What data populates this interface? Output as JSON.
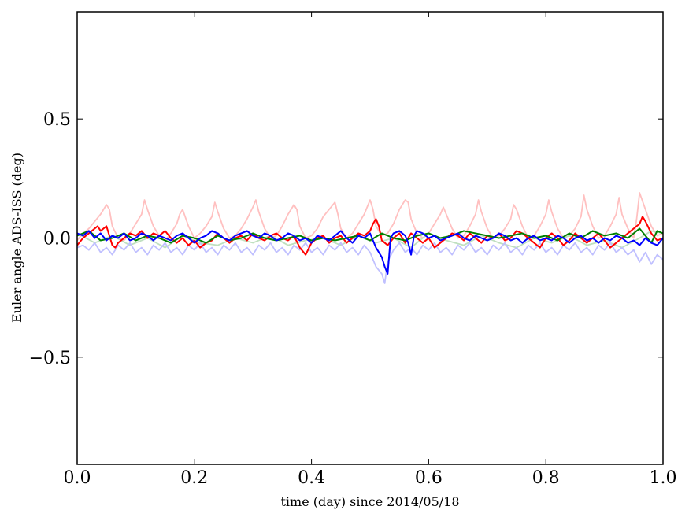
{
  "chart_data": {
    "type": "line",
    "xlabel": "time (day) since 2014/05/18",
    "ylabel": "Euler angle ADS-ISS (deg)",
    "xlim": [
      0.0,
      1.0
    ],
    "ylim": [
      -0.95,
      0.95
    ],
    "xticks": [
      0.0,
      0.2,
      0.4,
      0.6,
      0.8,
      1.0
    ],
    "xtick_labels": [
      "0.0",
      "0.2",
      "0.4",
      "0.6",
      "0.8",
      "1.0"
    ],
    "yticks": [
      -0.5,
      0.0,
      0.5
    ],
    "ytick_labels": [
      "−0.5",
      "0.0",
      "0.5"
    ],
    "grid": false,
    "legend": "none",
    "series": [
      {
        "color": "#ffc0c0",
        "x": [
          0.0,
          0.01,
          0.02,
          0.03,
          0.04,
          0.05,
          0.055,
          0.06,
          0.07,
          0.08,
          0.09,
          0.1,
          0.11,
          0.115,
          0.12,
          0.13,
          0.14,
          0.15,
          0.16,
          0.17,
          0.175,
          0.18,
          0.19,
          0.2,
          0.21,
          0.22,
          0.23,
          0.235,
          0.24,
          0.25,
          0.26,
          0.27,
          0.28,
          0.29,
          0.3,
          0.305,
          0.31,
          0.32,
          0.33,
          0.34,
          0.35,
          0.36,
          0.37,
          0.375,
          0.38,
          0.39,
          0.4,
          0.41,
          0.42,
          0.43,
          0.44,
          0.445,
          0.45,
          0.46,
          0.47,
          0.48,
          0.49,
          0.5,
          0.505,
          0.51,
          0.52,
          0.53,
          0.54,
          0.55,
          0.56,
          0.565,
          0.57,
          0.58,
          0.59,
          0.6,
          0.61,
          0.62,
          0.625,
          0.63,
          0.64,
          0.65,
          0.66,
          0.67,
          0.68,
          0.685,
          0.69,
          0.7,
          0.71,
          0.72,
          0.73,
          0.74,
          0.745,
          0.75,
          0.76,
          0.77,
          0.78,
          0.79,
          0.8,
          0.805,
          0.81,
          0.82,
          0.83,
          0.84,
          0.85,
          0.86,
          0.865,
          0.87,
          0.88,
          0.89,
          0.9,
          0.91,
          0.92,
          0.925,
          0.93,
          0.94,
          0.95,
          0.955,
          0.96,
          0.97,
          0.98,
          0.99,
          1.0
        ],
        "y": [
          -0.01,
          0.02,
          0.04,
          0.07,
          0.1,
          0.14,
          0.12,
          0.05,
          0.0,
          -0.01,
          0.02,
          0.06,
          0.1,
          0.16,
          0.12,
          0.05,
          0.01,
          -0.01,
          0.02,
          0.06,
          0.1,
          0.12,
          0.05,
          0.0,
          0.02,
          0.05,
          0.09,
          0.15,
          0.11,
          0.04,
          0.0,
          0.01,
          0.04,
          0.08,
          0.13,
          0.16,
          0.11,
          0.04,
          0.0,
          0.01,
          0.05,
          0.1,
          0.14,
          0.12,
          0.05,
          0.0,
          0.01,
          0.04,
          0.09,
          0.12,
          0.15,
          0.1,
          0.04,
          0.0,
          0.02,
          0.06,
          0.1,
          0.16,
          0.12,
          0.05,
          0.01,
          0.02,
          0.06,
          0.12,
          0.16,
          0.15,
          0.08,
          0.02,
          0.0,
          0.02,
          0.06,
          0.1,
          0.13,
          0.1,
          0.04,
          0.0,
          0.01,
          0.05,
          0.1,
          0.16,
          0.11,
          0.04,
          0.0,
          0.01,
          0.04,
          0.08,
          0.14,
          0.12,
          0.05,
          0.0,
          0.01,
          0.05,
          0.1,
          0.16,
          0.11,
          0.04,
          0.0,
          0.01,
          0.04,
          0.09,
          0.18,
          0.12,
          0.05,
          0.0,
          0.01,
          0.05,
          0.1,
          0.17,
          0.1,
          0.04,
          0.0,
          0.08,
          0.19,
          0.12,
          0.05,
          0.01,
          0.02
        ]
      },
      {
        "color": "#bfe0bf",
        "x": [
          0.0,
          0.03,
          0.06,
          0.09,
          0.12,
          0.15,
          0.18,
          0.21,
          0.24,
          0.27,
          0.3,
          0.33,
          0.36,
          0.39,
          0.42,
          0.45,
          0.48,
          0.51,
          0.54,
          0.57,
          0.6,
          0.63,
          0.66,
          0.69,
          0.72,
          0.75,
          0.78,
          0.81,
          0.84,
          0.87,
          0.9,
          0.93,
          0.96,
          0.98,
          1.0
        ],
        "y": [
          0.02,
          -0.02,
          0.01,
          -0.03,
          0.0,
          -0.04,
          0.01,
          -0.02,
          -0.03,
          0.0,
          -0.02,
          0.01,
          -0.03,
          -0.01,
          0.0,
          -0.03,
          0.01,
          -0.02,
          0.0,
          -0.04,
          0.02,
          -0.01,
          -0.03,
          0.01,
          -0.02,
          -0.04,
          0.0,
          -0.02,
          0.01,
          -0.03,
          -0.01,
          -0.04,
          0.0,
          0.03,
          0.02
        ]
      },
      {
        "color": "#c0c0ff",
        "x": [
          0.0,
          0.01,
          0.02,
          0.03,
          0.04,
          0.05,
          0.06,
          0.07,
          0.08,
          0.09,
          0.1,
          0.11,
          0.12,
          0.13,
          0.14,
          0.15,
          0.16,
          0.17,
          0.18,
          0.19,
          0.2,
          0.21,
          0.22,
          0.23,
          0.24,
          0.25,
          0.26,
          0.27,
          0.28,
          0.29,
          0.3,
          0.31,
          0.32,
          0.33,
          0.34,
          0.35,
          0.36,
          0.37,
          0.38,
          0.39,
          0.4,
          0.41,
          0.42,
          0.43,
          0.44,
          0.45,
          0.46,
          0.47,
          0.48,
          0.49,
          0.5,
          0.51,
          0.52,
          0.525,
          0.53,
          0.54,
          0.55,
          0.56,
          0.57,
          0.58,
          0.59,
          0.6,
          0.61,
          0.62,
          0.63,
          0.64,
          0.65,
          0.66,
          0.67,
          0.68,
          0.69,
          0.7,
          0.71,
          0.72,
          0.73,
          0.74,
          0.75,
          0.76,
          0.77,
          0.78,
          0.79,
          0.8,
          0.81,
          0.82,
          0.83,
          0.84,
          0.85,
          0.86,
          0.87,
          0.88,
          0.89,
          0.9,
          0.91,
          0.92,
          0.93,
          0.94,
          0.95,
          0.96,
          0.97,
          0.98,
          0.99,
          1.0
        ],
        "y": [
          -0.04,
          -0.03,
          -0.05,
          -0.02,
          -0.06,
          -0.04,
          -0.07,
          -0.03,
          -0.05,
          -0.02,
          -0.06,
          -0.04,
          -0.07,
          -0.03,
          -0.05,
          -0.02,
          -0.06,
          -0.04,
          -0.07,
          -0.03,
          -0.05,
          -0.02,
          -0.06,
          -0.04,
          -0.07,
          -0.03,
          -0.05,
          -0.02,
          -0.06,
          -0.04,
          -0.07,
          -0.03,
          -0.05,
          -0.02,
          -0.06,
          -0.04,
          -0.07,
          -0.03,
          -0.05,
          -0.02,
          -0.06,
          -0.04,
          -0.07,
          -0.03,
          -0.05,
          -0.02,
          -0.06,
          -0.04,
          -0.07,
          -0.03,
          -0.06,
          -0.12,
          -0.15,
          -0.19,
          -0.1,
          -0.05,
          -0.02,
          -0.06,
          -0.04,
          -0.07,
          -0.03,
          -0.05,
          -0.02,
          -0.06,
          -0.04,
          -0.07,
          -0.03,
          -0.05,
          -0.02,
          -0.06,
          -0.04,
          -0.07,
          -0.03,
          -0.05,
          -0.02,
          -0.06,
          -0.04,
          -0.07,
          -0.03,
          -0.05,
          -0.02,
          -0.06,
          -0.04,
          -0.07,
          -0.03,
          -0.05,
          -0.02,
          -0.06,
          -0.04,
          -0.07,
          -0.03,
          -0.05,
          -0.02,
          -0.06,
          -0.04,
          -0.07,
          -0.05,
          -0.1,
          -0.06,
          -0.11,
          -0.07,
          -0.09
        ]
      },
      {
        "color": "#ff0000",
        "x": [
          0.0,
          0.01,
          0.02,
          0.03,
          0.035,
          0.04,
          0.05,
          0.06,
          0.065,
          0.07,
          0.08,
          0.09,
          0.1,
          0.11,
          0.12,
          0.13,
          0.14,
          0.15,
          0.16,
          0.17,
          0.18,
          0.19,
          0.2,
          0.21,
          0.22,
          0.23,
          0.24,
          0.25,
          0.26,
          0.27,
          0.28,
          0.29,
          0.3,
          0.31,
          0.32,
          0.33,
          0.34,
          0.35,
          0.36,
          0.37,
          0.38,
          0.39,
          0.4,
          0.41,
          0.42,
          0.43,
          0.44,
          0.45,
          0.46,
          0.47,
          0.48,
          0.49,
          0.5,
          0.505,
          0.51,
          0.515,
          0.52,
          0.53,
          0.54,
          0.55,
          0.56,
          0.57,
          0.58,
          0.59,
          0.6,
          0.61,
          0.62,
          0.63,
          0.64,
          0.65,
          0.66,
          0.67,
          0.68,
          0.69,
          0.7,
          0.71,
          0.72,
          0.73,
          0.74,
          0.75,
          0.76,
          0.77,
          0.78,
          0.79,
          0.8,
          0.81,
          0.82,
          0.83,
          0.84,
          0.85,
          0.86,
          0.87,
          0.88,
          0.89,
          0.9,
          0.91,
          0.92,
          0.93,
          0.94,
          0.95,
          0.96,
          0.965,
          0.97,
          0.98,
          0.99,
          1.0
        ],
        "y": [
          -0.03,
          0.0,
          0.02,
          0.04,
          0.05,
          0.03,
          0.05,
          -0.03,
          -0.04,
          -0.02,
          0.0,
          0.02,
          0.01,
          0.03,
          0.0,
          0.02,
          0.01,
          0.03,
          0.0,
          -0.02,
          0.0,
          -0.03,
          -0.01,
          -0.04,
          -0.02,
          -0.01,
          0.02,
          0.0,
          -0.02,
          0.0,
          0.01,
          -0.01,
          0.02,
          0.0,
          -0.01,
          0.01,
          0.02,
          0.0,
          -0.01,
          0.01,
          -0.04,
          -0.07,
          -0.02,
          0.0,
          0.01,
          -0.02,
          0.0,
          0.01,
          -0.02,
          0.0,
          0.02,
          0.01,
          0.03,
          0.06,
          0.08,
          0.05,
          -0.01,
          -0.03,
          0.0,
          0.02,
          -0.02,
          0.02,
          0.0,
          -0.02,
          0.0,
          -0.04,
          -0.02,
          0.0,
          0.02,
          0.01,
          -0.01,
          0.02,
          0.0,
          -0.02,
          0.01,
          0.0,
          0.02,
          -0.01,
          0.0,
          0.03,
          0.02,
          0.0,
          -0.02,
          -0.04,
          0.0,
          0.02,
          0.0,
          -0.03,
          -0.01,
          0.02,
          0.0,
          -0.02,
          0.0,
          0.02,
          -0.01,
          -0.04,
          -0.02,
          0.0,
          0.02,
          0.04,
          0.06,
          0.09,
          0.07,
          0.02,
          -0.01,
          0.0
        ]
      },
      {
        "color": "#008000",
        "x": [
          0.0,
          0.02,
          0.04,
          0.06,
          0.08,
          0.1,
          0.12,
          0.14,
          0.16,
          0.18,
          0.2,
          0.22,
          0.24,
          0.26,
          0.28,
          0.3,
          0.32,
          0.34,
          0.36,
          0.38,
          0.4,
          0.42,
          0.44,
          0.46,
          0.48,
          0.5,
          0.52,
          0.54,
          0.56,
          0.58,
          0.6,
          0.62,
          0.64,
          0.66,
          0.68,
          0.7,
          0.72,
          0.74,
          0.76,
          0.78,
          0.8,
          0.82,
          0.84,
          0.86,
          0.88,
          0.9,
          0.92,
          0.94,
          0.96,
          0.97,
          0.98,
          0.99,
          1.0
        ],
        "y": [
          0.01,
          0.03,
          -0.01,
          0.0,
          0.02,
          -0.01,
          0.01,
          0.0,
          -0.02,
          0.01,
          0.0,
          -0.02,
          0.01,
          -0.01,
          0.0,
          0.02,
          0.0,
          -0.01,
          0.0,
          0.01,
          -0.01,
          0.0,
          -0.01,
          0.0,
          0.01,
          -0.01,
          0.02,
          0.0,
          -0.01,
          0.01,
          0.02,
          0.0,
          0.01,
          0.03,
          0.02,
          0.01,
          0.0,
          0.01,
          0.02,
          0.0,
          0.01,
          -0.01,
          0.02,
          0.0,
          0.03,
          0.01,
          0.02,
          0.0,
          0.04,
          0.01,
          -0.02,
          0.03,
          0.02
        ]
      },
      {
        "color": "#0000ff",
        "x": [
          0.0,
          0.01,
          0.02,
          0.03,
          0.04,
          0.05,
          0.06,
          0.07,
          0.08,
          0.09,
          0.1,
          0.11,
          0.12,
          0.13,
          0.14,
          0.15,
          0.16,
          0.17,
          0.18,
          0.19,
          0.2,
          0.21,
          0.22,
          0.23,
          0.24,
          0.25,
          0.26,
          0.27,
          0.28,
          0.29,
          0.3,
          0.31,
          0.32,
          0.33,
          0.34,
          0.35,
          0.36,
          0.37,
          0.38,
          0.39,
          0.4,
          0.41,
          0.42,
          0.43,
          0.44,
          0.45,
          0.46,
          0.47,
          0.48,
          0.49,
          0.5,
          0.51,
          0.52,
          0.525,
          0.53,
          0.535,
          0.54,
          0.55,
          0.56,
          0.565,
          0.57,
          0.575,
          0.58,
          0.59,
          0.6,
          0.61,
          0.62,
          0.63,
          0.64,
          0.65,
          0.66,
          0.67,
          0.68,
          0.69,
          0.7,
          0.71,
          0.72,
          0.73,
          0.74,
          0.75,
          0.76,
          0.77,
          0.78,
          0.79,
          0.8,
          0.81,
          0.82,
          0.83,
          0.84,
          0.85,
          0.86,
          0.87,
          0.88,
          0.89,
          0.9,
          0.91,
          0.92,
          0.93,
          0.94,
          0.95,
          0.96,
          0.97,
          0.98,
          0.99,
          1.0
        ],
        "y": [
          0.02,
          0.01,
          0.03,
          0.0,
          0.02,
          -0.01,
          0.01,
          0.0,
          0.02,
          -0.01,
          0.0,
          0.02,
          0.01,
          -0.01,
          0.01,
          0.0,
          -0.01,
          0.01,
          0.02,
          0.0,
          -0.02,
          0.0,
          0.01,
          0.03,
          0.02,
          0.0,
          -0.01,
          0.01,
          0.02,
          0.03,
          0.01,
          0.0,
          0.02,
          0.01,
          -0.01,
          0.0,
          0.02,
          0.01,
          -0.01,
          0.0,
          -0.02,
          0.01,
          0.0,
          -0.01,
          0.01,
          0.03,
          0.0,
          -0.02,
          0.01,
          0.0,
          0.02,
          -0.04,
          -0.08,
          -0.12,
          -0.15,
          0.0,
          0.02,
          0.03,
          0.01,
          -0.02,
          -0.07,
          0.01,
          0.03,
          0.02,
          0.0,
          0.01,
          -0.01,
          0.0,
          0.01,
          0.02,
          0.0,
          -0.01,
          0.01,
          0.0,
          -0.01,
          0.0,
          0.02,
          0.01,
          -0.01,
          0.0,
          -0.02,
          0.0,
          0.01,
          -0.01,
          0.0,
          -0.01,
          0.01,
          0.0,
          -0.02,
          0.0,
          0.01,
          -0.01,
          0.0,
          -0.02,
          0.0,
          -0.01,
          0.01,
          0.0,
          -0.02,
          -0.01,
          -0.03,
          0.0,
          -0.02,
          -0.03,
          0.0
        ]
      }
    ]
  }
}
